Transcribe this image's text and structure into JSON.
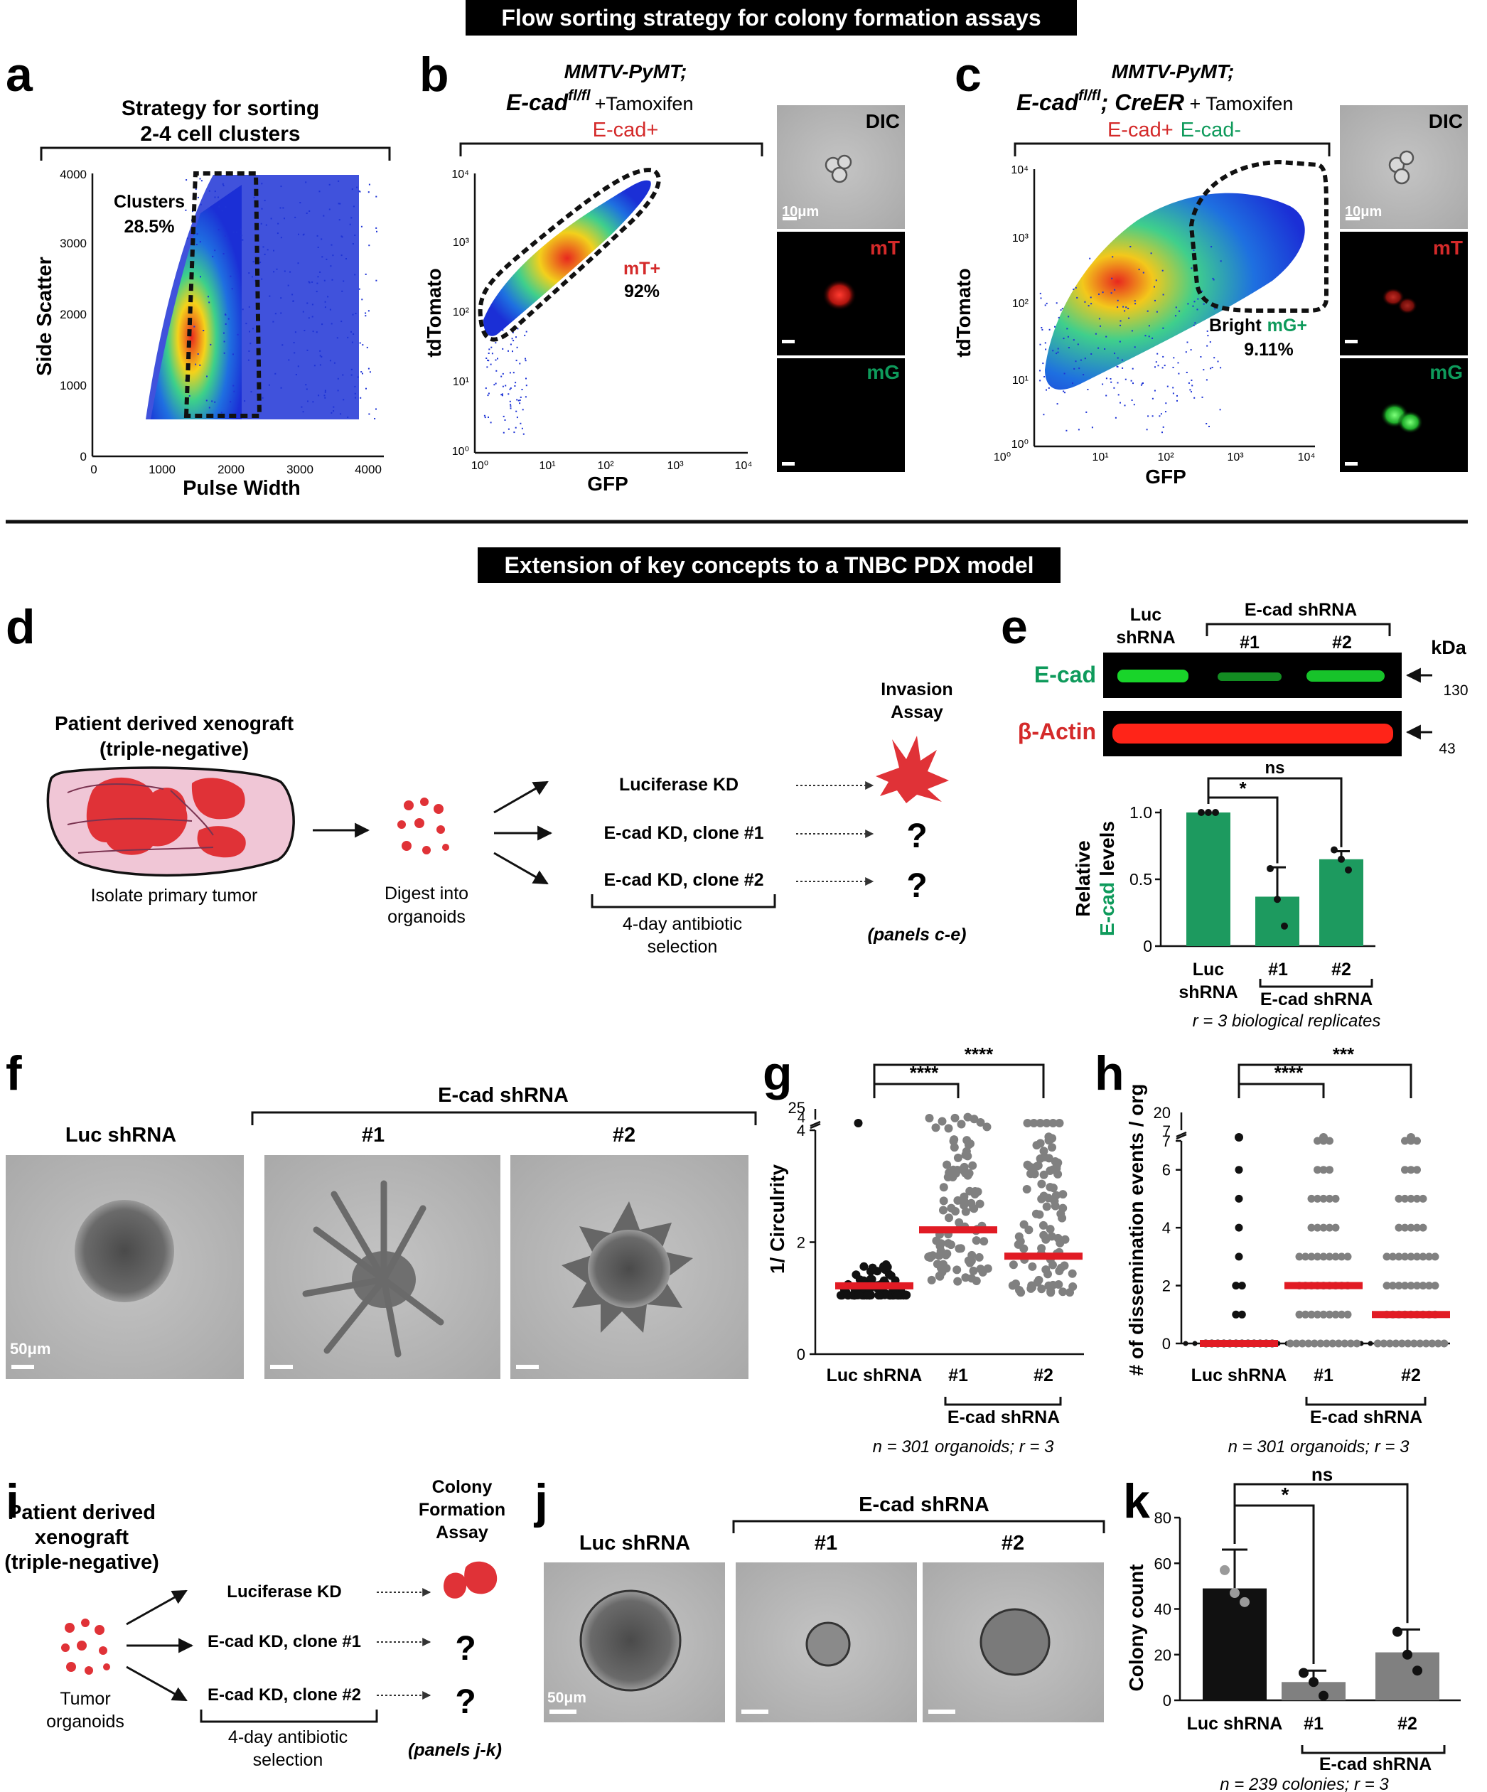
{
  "header1": "Flow sorting strategy for colony formation assays",
  "header2": "Extension of key concepts to a TNBC PDX model",
  "colors": {
    "red": "#d42a2a",
    "green": "#0e9a5b",
    "bar_green": "#1d9a5f",
    "gray": "#808080",
    "black": "#111111",
    "mean_red": "#e11b24"
  },
  "panel_a": {
    "letter": "a",
    "title_line1": "Strategy for sorting",
    "title_line2": "2-4 cell clusters",
    "gate_label": "Clusters",
    "gate_pct": "28.5%",
    "xlabel": "Pulse Width",
    "ylabel": "Side Scatter",
    "xticks": [
      "0",
      "1000",
      "2000",
      "3000",
      "4000"
    ],
    "yticks": [
      "0",
      "1000",
      "2000",
      "3000",
      "4000"
    ]
  },
  "panel_b": {
    "letter": "b",
    "title_line1": "MMTV-PyMT;",
    "title_gene": "E-cad",
    "title_sup": "fl/fl",
    "title_rest": "+Tamoxifen",
    "subtitle": "E-cad+",
    "gate_label": "mT+",
    "gate_pct": "92%",
    "xlabel": "GFP",
    "ylabel": "tdTomato",
    "ticks": [
      "10⁰",
      "10¹",
      "10²",
      "10³",
      "10⁴"
    ],
    "img_dic": "DIC",
    "img_mt": "mT",
    "img_mg": "mG",
    "scale": "10μm"
  },
  "panel_c": {
    "letter": "c",
    "title_line1": "MMTV-PyMT;",
    "title_gene": "E-cad",
    "title_sup": "fl/fl",
    "title_cre": "; CreER",
    "title_rest": " + Tamoxifen",
    "subtitle_red": "E-cad+",
    "subtitle_green": "E-cad-",
    "gate_label_black": "Bright",
    "gate_label_green": "mG+",
    "gate_pct": "9.11%",
    "xlabel": "GFP",
    "ylabel": "tdTomato",
    "ticks": [
      "10⁰",
      "10¹",
      "10²",
      "10³",
      "10⁴"
    ],
    "img_dic": "DIC",
    "img_mt": "mT",
    "img_mg": "mG",
    "scale": "10μm"
  },
  "panel_d": {
    "letter": "d",
    "pdx_line1": "Patient derived xenograft",
    "pdx_line2": "(triple-negative)",
    "isolate": "Isolate primary tumor",
    "digest_line1": "Digest into",
    "digest_line2": "organoids",
    "kd1": "Luciferase KD",
    "kd2": "E-cad KD, clone #1",
    "kd3": "E-cad KD, clone #2",
    "selection_line1": "4-day antibiotic",
    "selection_line2": "selection",
    "assay_line1": "Invasion",
    "assay_line2": "Assay",
    "q": "?",
    "panels_ref": "(panels c-e)"
  },
  "panel_e": {
    "letter": "e",
    "lane_luc_line1": "Luc",
    "lane_luc_line2": "shRNA",
    "group": "E-cad shRNA",
    "lane1": "#1",
    "lane2": "#2",
    "kda": "kDa",
    "band1": "E-cad",
    "band2": "β-Actin",
    "mw1": "130",
    "mw2": "43",
    "ylabel_black": "Relative",
    "ylabel_green": "E-cad",
    "ylabel_rest": "levels",
    "sig1": "*",
    "sig2": "ns",
    "footnote": "r = 3 biological replicates"
  },
  "panel_f": {
    "letter": "f",
    "group": "E-cad shRNA",
    "lane_luc": "Luc shRNA",
    "lane1": "#1",
    "lane2": "#2",
    "scale": "50μm"
  },
  "panel_g": {
    "letter": "g",
    "ylabel": "1/ Circulrity",
    "sig1": "****",
    "sig2": "****",
    "group": "E-cad shRNA",
    "footnote": "n = 301 organoids; r = 3"
  },
  "panel_h": {
    "letter": "h",
    "ylabel": "# of dissemination events / org",
    "sig1": "****",
    "sig2": "***",
    "group": "E-cad shRNA",
    "footnote": "n = 301 organoids; r = 3"
  },
  "panel_i": {
    "letter": "i",
    "pdx_line1": "Patient derived",
    "pdx_line2": "xenograft",
    "pdx_line3": "(triple-negative)",
    "tumor_line1": "Tumor",
    "tumor_line2": "organoids",
    "kd1": "Luciferase KD",
    "kd2": "E-cad KD, clone #1",
    "kd3": "E-cad KD, clone #2",
    "selection_line1": "4-day antibiotic",
    "selection_line2": "selection",
    "assay_line1": "Colony",
    "assay_line2": "Formation",
    "assay_line3": "Assay",
    "q": "?",
    "panels_ref": "(panels j-k)"
  },
  "panel_j": {
    "letter": "j",
    "group": "E-cad shRNA",
    "lane_luc": "Luc shRNA",
    "lane1": "#1",
    "lane2": "#2",
    "scale": "50μm"
  },
  "panel_k": {
    "letter": "k",
    "ylabel": "Colony count",
    "sig1": "*",
    "sig2": "ns",
    "group": "E-cad shRNA",
    "footnote": "n = 239 colonies; r = 3"
  },
  "chart_data": [
    {
      "type": "bar",
      "panel": "e",
      "categories": [
        "Luc shRNA",
        "#1",
        "#2"
      ],
      "values": [
        1.0,
        0.37,
        0.65
      ],
      "errors": [
        0.0,
        0.22,
        0.06
      ],
      "points": [
        [
          1.0,
          1.0,
          1.0
        ],
        [
          0.58,
          0.35,
          0.15
        ],
        [
          0.72,
          0.65,
          0.57
        ]
      ],
      "ylabel": "Relative E-cad levels",
      "yticks": [
        "0",
        "0.5",
        "1.0"
      ],
      "ylim": [
        0,
        1.0
      ]
    },
    {
      "type": "scatter",
      "panel": "g",
      "categories": [
        "Luc shRNA",
        "#1",
        "#2"
      ],
      "means": [
        1.22,
        2.22,
        1.75
      ],
      "ylabel": "1/ Circulrity",
      "yticks_lower": [
        "0",
        "2",
        "4"
      ],
      "yticks_upper": [
        "4",
        "25"
      ],
      "ylim_lower": [
        0,
        4
      ],
      "ylim_upper": [
        4,
        25
      ]
    },
    {
      "type": "scatter",
      "panel": "h",
      "categories": [
        "Luc shRNA",
        "#1",
        "#2"
      ],
      "means": [
        0,
        2,
        1
      ],
      "ylabel": "# of dissemination events / org",
      "yticks_lower": [
        "0",
        "2",
        "4",
        "6",
        "7"
      ],
      "yticks_upper": [
        "7",
        "20"
      ],
      "ylim_lower": [
        0,
        7
      ],
      "ylim_upper": [
        7,
        20
      ]
    },
    {
      "type": "bar",
      "panel": "k",
      "categories": [
        "Luc shRNA",
        "#1",
        "#2"
      ],
      "values": [
        49,
        8,
        21
      ],
      "errors": [
        17,
        5,
        10
      ],
      "points": [
        [
          57,
          47,
          43
        ],
        [
          12,
          8,
          2
        ],
        [
          30,
          20,
          13
        ]
      ],
      "ylabel": "Colony count",
      "yticks": [
        "0",
        "20",
        "40",
        "60",
        "80"
      ],
      "ylim": [
        0,
        80
      ]
    }
  ]
}
